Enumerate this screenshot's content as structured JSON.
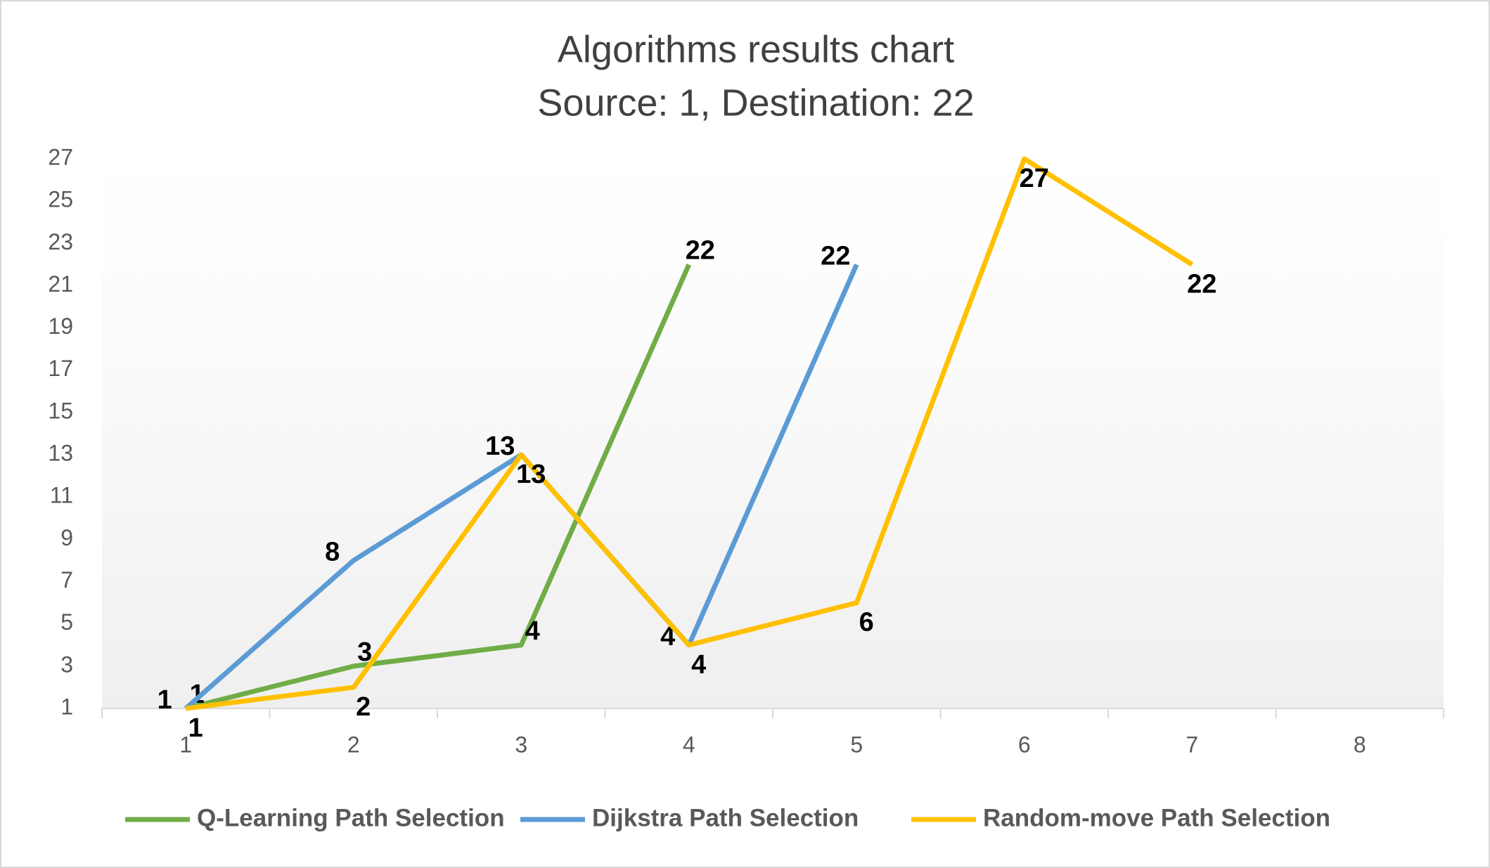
{
  "chart_data": {
    "type": "line",
    "title": "Algorithms results chart",
    "subtitle": "Source: 1, Destination: 22",
    "categories": [
      "1",
      "2",
      "3",
      "4",
      "5",
      "6",
      "7",
      "8"
    ],
    "series": [
      {
        "name": "Q-Learning Path Selection",
        "color": "#70ad47",
        "values": [
          1,
          3,
          4,
          22,
          null,
          null,
          null,
          null
        ]
      },
      {
        "name": "Dijkstra Path Selection",
        "color": "#5b9bd5",
        "values": [
          1,
          8,
          13,
          4,
          22,
          null,
          null,
          null
        ]
      },
      {
        "name": "Random-move Path Selection",
        "color": "#ffc000",
        "values": [
          1,
          2,
          13,
          4,
          6,
          27,
          22,
          null
        ]
      }
    ],
    "ylim": [
      1,
      27
    ],
    "yticks": [
      1,
      3,
      5,
      7,
      9,
      11,
      13,
      15,
      17,
      19,
      21,
      23,
      25,
      27
    ],
    "grid": false,
    "legend": "bottom"
  }
}
